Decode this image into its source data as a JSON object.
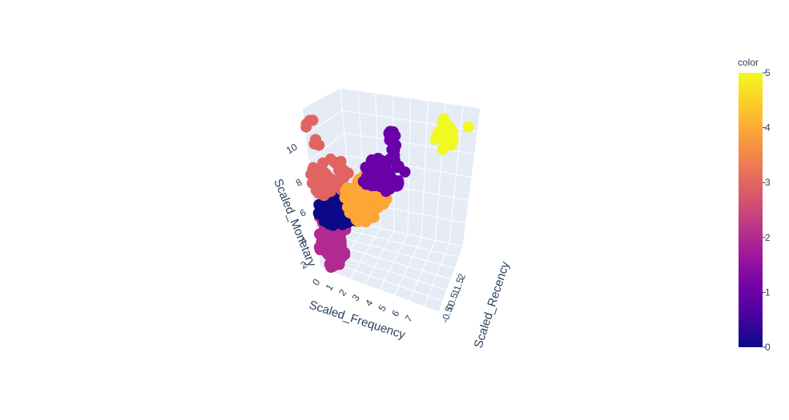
{
  "chart_data": {
    "type": "scatter",
    "subtype": "scatter3d",
    "x_axis": {
      "title": "Scaled_Frequency",
      "ticks": [
        "0",
        "1",
        "2",
        "3",
        "4",
        "5",
        "6",
        "7"
      ]
    },
    "y_axis": {
      "title": "Scaled_Recency",
      "ticks": [
        "2",
        "1.5",
        "1",
        "0.5",
        "0",
        "-0.5"
      ]
    },
    "z_axis": {
      "title": "Scaled_Monetary",
      "ticks": [
        "2",
        "4",
        "6",
        "8",
        "10"
      ]
    },
    "colorbar": {
      "title": "color",
      "range": [
        0,
        5
      ],
      "ticks": [
        "0",
        "1",
        "2",
        "3",
        "4",
        "5"
      ],
      "colors": [
        "#0d0887",
        "#6a00a8",
        "#b12a90",
        "#e16462",
        "#fca636",
        "#f0f921"
      ]
    },
    "clusters": [
      {
        "label": "2",
        "color": "#b12a90",
        "approx_frequency": [
          0,
          1.5
        ],
        "approx_monetary": [
          1.5,
          5.5
        ]
      },
      {
        "label": "0",
        "color": "#0d0887",
        "approx_frequency": [
          0.5,
          2.5
        ],
        "approx_monetary": [
          4.5,
          6.5
        ]
      },
      {
        "label": "3",
        "color": "#e16462",
        "approx_frequency": [
          0,
          1.5
        ],
        "approx_monetary": [
          6.5,
          11.5
        ]
      },
      {
        "label": "4",
        "color": "#fca636",
        "approx_frequency": [
          1.5,
          4
        ],
        "approx_monetary": [
          5,
          8
        ]
      },
      {
        "label": "1",
        "color": "#6a00a8",
        "approx_frequency": [
          3,
          5.5
        ],
        "approx_monetary": [
          6.5,
          10.5
        ]
      },
      {
        "label": "5",
        "color": "#f0f921",
        "approx_frequency": [
          6.5,
          8
        ],
        "approx_monetary": [
          8,
          12
        ]
      }
    ]
  }
}
